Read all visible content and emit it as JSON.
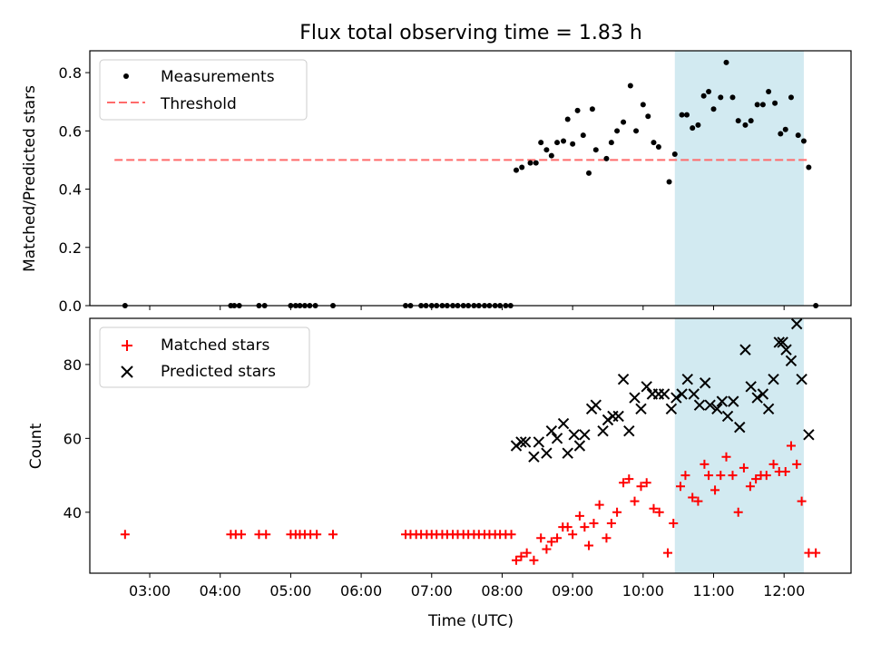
{
  "chart_data": {
    "title": "Flux total observing time = 1.83 h",
    "xlabel": "Time (UTC)",
    "x_unit": "hours UTC",
    "xlim": [
      2.15,
      12.95
    ],
    "xticks": [
      3,
      4,
      5,
      6,
      7,
      8,
      9,
      10,
      11,
      12
    ],
    "xtick_labels": [
      "03:00",
      "04:00",
      "05:00",
      "06:00",
      "07:00",
      "08:00",
      "09:00",
      "10:00",
      "11:00",
      "12:00"
    ],
    "highlight": {
      "x_start": 10.45,
      "x_end": 12.28,
      "color": "#add8e6"
    },
    "panels": [
      {
        "type": "scatter",
        "ylabel": "Matched/Predicted stars",
        "ylim": [
          0,
          0.875
        ],
        "yticks": [
          0.0,
          0.2,
          0.4,
          0.6,
          0.8
        ],
        "ytick_labels": [
          "0.0",
          "0.2",
          "0.4",
          "0.6",
          "0.8"
        ],
        "legend": [
          "Measurements",
          "Threshold"
        ],
        "legend_position": "upper-left",
        "threshold": {
          "name": "Threshold",
          "value": 0.5,
          "x_start": 2.5,
          "x_end": 12.35,
          "color": "#ff6b6b",
          "style": "dashed"
        },
        "series": [
          {
            "name": "Measurements",
            "marker": "dot",
            "color": "#000000",
            "points": [
              [
                2.65,
                0
              ],
              [
                4.15,
                0
              ],
              [
                4.2,
                0
              ],
              [
                4.27,
                0
              ],
              [
                4.55,
                0
              ],
              [
                4.63,
                0
              ],
              [
                5.0,
                0
              ],
              [
                5.07,
                0
              ],
              [
                5.13,
                0
              ],
              [
                5.2,
                0
              ],
              [
                5.27,
                0
              ],
              [
                5.35,
                0
              ],
              [
                5.6,
                0
              ],
              [
                6.63,
                0
              ],
              [
                6.7,
                0
              ],
              [
                6.85,
                0
              ],
              [
                6.92,
                0
              ],
              [
                7.0,
                0
              ],
              [
                7.07,
                0
              ],
              [
                7.15,
                0
              ],
              [
                7.22,
                0
              ],
              [
                7.3,
                0
              ],
              [
                7.37,
                0
              ],
              [
                7.45,
                0
              ],
              [
                7.52,
                0
              ],
              [
                7.6,
                0
              ],
              [
                7.67,
                0
              ],
              [
                7.75,
                0
              ],
              [
                7.82,
                0
              ],
              [
                7.9,
                0
              ],
              [
                7.97,
                0
              ],
              [
                8.05,
                0
              ],
              [
                8.12,
                0
              ],
              [
                8.2,
                0.465
              ],
              [
                8.28,
                0.475
              ],
              [
                8.4,
                0.49
              ],
              [
                8.48,
                0.49
              ],
              [
                8.55,
                0.56
              ],
              [
                8.63,
                0.535
              ],
              [
                8.7,
                0.515
              ],
              [
                8.78,
                0.56
              ],
              [
                8.87,
                0.565
              ],
              [
                8.93,
                0.64
              ],
              [
                9.0,
                0.555
              ],
              [
                9.07,
                0.67
              ],
              [
                9.15,
                0.585
              ],
              [
                9.28,
                0.675
              ],
              [
                9.23,
                0.455
              ],
              [
                9.33,
                0.535
              ],
              [
                9.48,
                0.505
              ],
              [
                9.55,
                0.56
              ],
              [
                9.63,
                0.6
              ],
              [
                9.72,
                0.63
              ],
              [
                9.82,
                0.755
              ],
              [
                9.9,
                0.6
              ],
              [
                10.0,
                0.69
              ],
              [
                10.07,
                0.65
              ],
              [
                10.15,
                0.56
              ],
              [
                10.22,
                0.545
              ],
              [
                10.37,
                0.425
              ],
              [
                10.45,
                0.52
              ],
              [
                10.55,
                0.655
              ],
              [
                10.62,
                0.655
              ],
              [
                10.7,
                0.61
              ],
              [
                10.78,
                0.62
              ],
              [
                10.86,
                0.72
              ],
              [
                10.93,
                0.735
              ],
              [
                11.0,
                0.675
              ],
              [
                11.1,
                0.715
              ],
              [
                11.18,
                0.835
              ],
              [
                11.27,
                0.715
              ],
              [
                11.35,
                0.635
              ],
              [
                11.45,
                0.62
              ],
              [
                11.53,
                0.635
              ],
              [
                11.62,
                0.69
              ],
              [
                11.7,
                0.69
              ],
              [
                11.78,
                0.735
              ],
              [
                11.87,
                0.695
              ],
              [
                11.95,
                0.59
              ],
              [
                12.02,
                0.605
              ],
              [
                12.1,
                0.715
              ],
              [
                12.2,
                0.585
              ],
              [
                12.28,
                0.565
              ],
              [
                12.35,
                0.475
              ],
              [
                12.45,
                0
              ]
            ]
          }
        ]
      },
      {
        "type": "scatter",
        "ylabel": "Count",
        "ylim": [
          23.5,
          92.5
        ],
        "yticks": [
          40,
          60,
          80
        ],
        "ytick_labels": [
          "40",
          "60",
          "80"
        ],
        "legend": [
          "Matched stars",
          "Predicted stars"
        ],
        "legend_position": "upper-left",
        "series": [
          {
            "name": "Matched stars",
            "marker": "plus",
            "color": "#ff0000",
            "points": [
              [
                2.65,
                34
              ],
              [
                4.15,
                34
              ],
              [
                4.22,
                34
              ],
              [
                4.3,
                34
              ],
              [
                4.55,
                34
              ],
              [
                4.65,
                34
              ],
              [
                5.0,
                34
              ],
              [
                5.07,
                34
              ],
              [
                5.13,
                34
              ],
              [
                5.2,
                34
              ],
              [
                5.28,
                34
              ],
              [
                5.37,
                34
              ],
              [
                5.6,
                34
              ],
              [
                6.63,
                34
              ],
              [
                6.7,
                34
              ],
              [
                6.78,
                34
              ],
              [
                6.85,
                34
              ],
              [
                6.93,
                34
              ],
              [
                7.0,
                34
              ],
              [
                7.07,
                34
              ],
              [
                7.15,
                34
              ],
              [
                7.22,
                34
              ],
              [
                7.3,
                34
              ],
              [
                7.37,
                34
              ],
              [
                7.45,
                34
              ],
              [
                7.52,
                34
              ],
              [
                7.6,
                34
              ],
              [
                7.67,
                34
              ],
              [
                7.75,
                34
              ],
              [
                7.82,
                34
              ],
              [
                7.9,
                34
              ],
              [
                7.97,
                34
              ],
              [
                8.05,
                34
              ],
              [
                8.13,
                34
              ],
              [
                8.2,
                27
              ],
              [
                8.27,
                28
              ],
              [
                8.35,
                29
              ],
              [
                8.45,
                27
              ],
              [
                8.55,
                33
              ],
              [
                8.63,
                30
              ],
              [
                8.7,
                32
              ],
              [
                8.78,
                33
              ],
              [
                8.86,
                36
              ],
              [
                8.93,
                36
              ],
              [
                9.0,
                34
              ],
              [
                9.1,
                39
              ],
              [
                9.17,
                36
              ],
              [
                9.23,
                31
              ],
              [
                9.3,
                37
              ],
              [
                9.38,
                42
              ],
              [
                9.48,
                33
              ],
              [
                9.55,
                37
              ],
              [
                9.63,
                40
              ],
              [
                9.72,
                48
              ],
              [
                9.8,
                49
              ],
              [
                9.88,
                43
              ],
              [
                9.97,
                47
              ],
              [
                10.05,
                48
              ],
              [
                10.15,
                41
              ],
              [
                10.23,
                40
              ],
              [
                10.35,
                29
              ],
              [
                10.43,
                37
              ],
              [
                10.53,
                47
              ],
              [
                10.6,
                50
              ],
              [
                10.7,
                44
              ],
              [
                10.78,
                43
              ],
              [
                10.87,
                53
              ],
              [
                10.93,
                50
              ],
              [
                11.02,
                46
              ],
              [
                11.1,
                50
              ],
              [
                11.18,
                55
              ],
              [
                11.27,
                50
              ],
              [
                11.35,
                40
              ],
              [
                11.43,
                52
              ],
              [
                11.52,
                47
              ],
              [
                11.6,
                49
              ],
              [
                11.67,
                50
              ],
              [
                11.75,
                50
              ],
              [
                11.85,
                53
              ],
              [
                11.93,
                51
              ],
              [
                12.02,
                51
              ],
              [
                12.1,
                58
              ],
              [
                12.18,
                53
              ],
              [
                12.25,
                43
              ],
              [
                12.35,
                29
              ],
              [
                12.45,
                29
              ]
            ]
          },
          {
            "name": "Predicted stars",
            "marker": "x",
            "color": "#000000",
            "points": [
              [
                8.2,
                58
              ],
              [
                8.27,
                59
              ],
              [
                8.33,
                59
              ],
              [
                8.45,
                55
              ],
              [
                8.52,
                59
              ],
              [
                8.63,
                56
              ],
              [
                8.7,
                62
              ],
              [
                8.78,
                60
              ],
              [
                8.87,
                64
              ],
              [
                8.93,
                56
              ],
              [
                9.02,
                61
              ],
              [
                9.1,
                58
              ],
              [
                9.17,
                61
              ],
              [
                9.27,
                68
              ],
              [
                9.33,
                69
              ],
              [
                9.43,
                62
              ],
              [
                9.5,
                65
              ],
              [
                9.57,
                66
              ],
              [
                9.65,
                66
              ],
              [
                9.72,
                76
              ],
              [
                9.8,
                62
              ],
              [
                9.88,
                71
              ],
              [
                9.97,
                68
              ],
              [
                10.05,
                74
              ],
              [
                10.13,
                72
              ],
              [
                10.22,
                72
              ],
              [
                10.3,
                72
              ],
              [
                10.4,
                68
              ],
              [
                10.47,
                71
              ],
              [
                10.55,
                72
              ],
              [
                10.63,
                76
              ],
              [
                10.72,
                72
              ],
              [
                10.8,
                69
              ],
              [
                10.88,
                75
              ],
              [
                10.95,
                69
              ],
              [
                11.05,
                68
              ],
              [
                11.12,
                70
              ],
              [
                11.2,
                66
              ],
              [
                11.28,
                70
              ],
              [
                11.37,
                63
              ],
              [
                11.45,
                84
              ],
              [
                11.53,
                74
              ],
              [
                11.62,
                71
              ],
              [
                11.7,
                72
              ],
              [
                11.78,
                68
              ],
              [
                11.85,
                76
              ],
              [
                11.93,
                86
              ],
              [
                11.98,
                86
              ],
              [
                12.03,
                84
              ],
              [
                12.1,
                81
              ],
              [
                12.18,
                91
              ],
              [
                12.25,
                76
              ],
              [
                12.35,
                61
              ]
            ]
          }
        ]
      }
    ]
  }
}
